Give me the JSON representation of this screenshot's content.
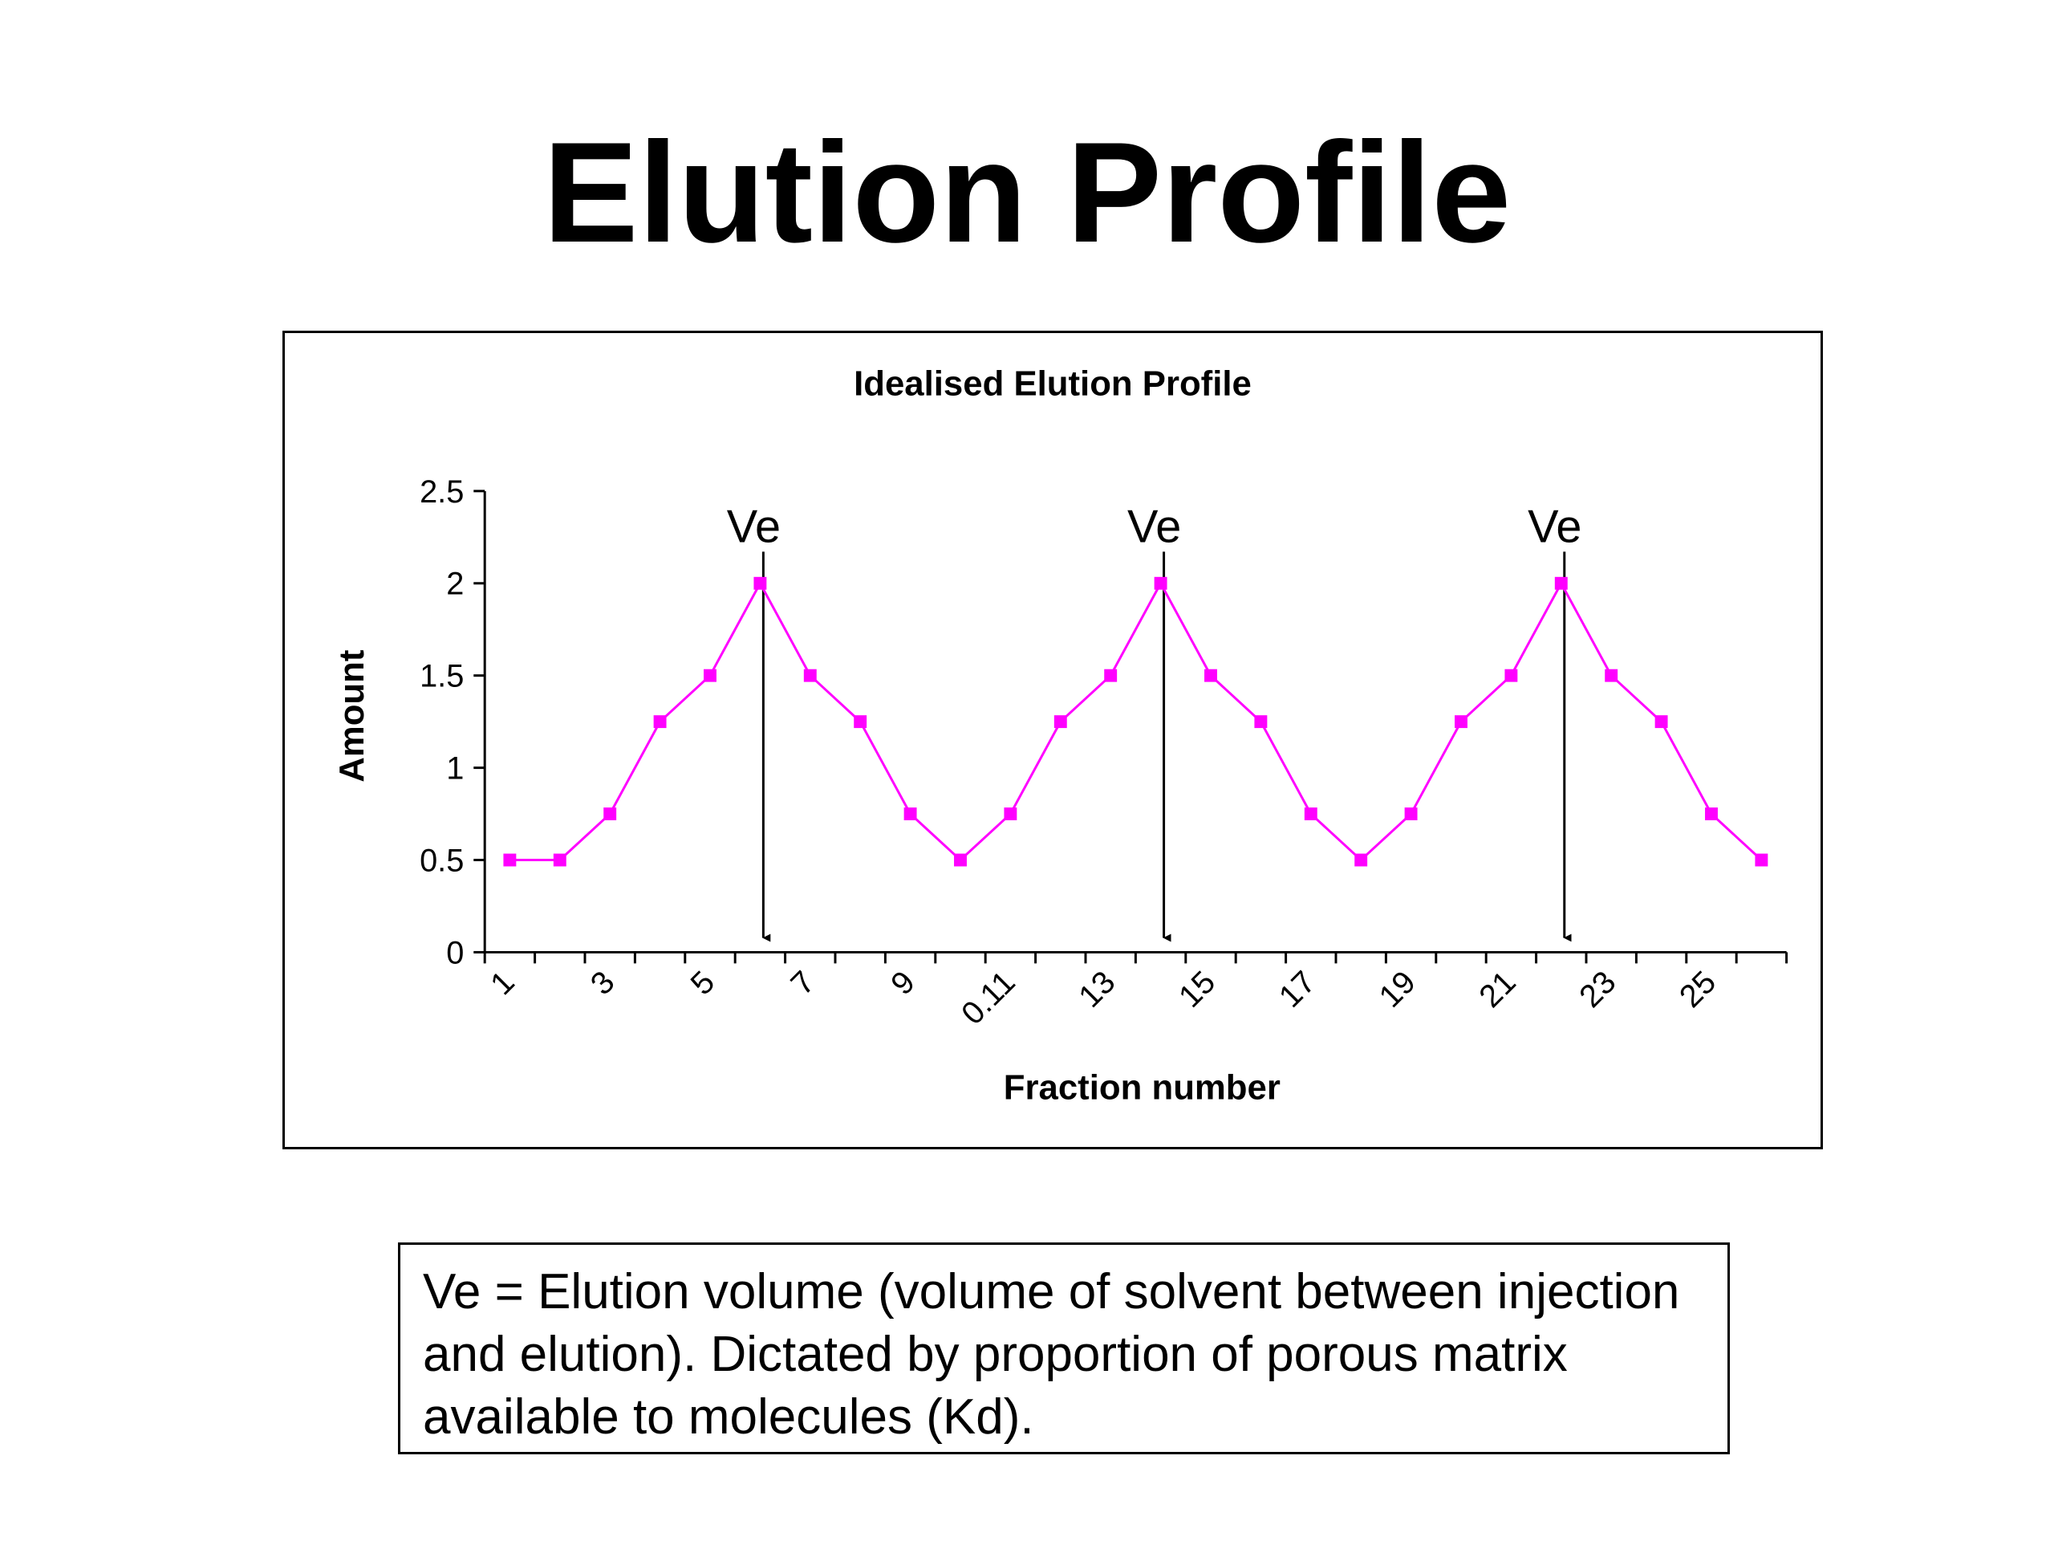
{
  "slide_title": "Elution Profile",
  "legend_text": "Ve = Elution volume (volume of solvent between injection and elution). Dictated by proportion of porous matrix available to molecules (Kd).",
  "chart_data": {
    "type": "line",
    "title": "Idealised Elution Profile",
    "xlabel": "Fraction number",
    "ylabel": "Amount",
    "ylim": [
      0,
      2.5
    ],
    "yticks": [
      "0",
      "0.5",
      "1",
      "1.5",
      "2",
      "2.5"
    ],
    "x": [
      "1",
      "2",
      "3",
      "4",
      "5",
      "6",
      "7",
      "8",
      "9",
      "10",
      "0.11",
      "12",
      "13",
      "14",
      "15",
      "16",
      "17",
      "18",
      "19",
      "20",
      "21",
      "22",
      "23",
      "24",
      "25",
      "26"
    ],
    "xtick_labels": [
      "1",
      "3",
      "5",
      "7",
      "9",
      "0.11",
      "13",
      "15",
      "17",
      "19",
      "21",
      "23",
      "25"
    ],
    "series": [
      {
        "values": [
          0.5,
          0.5,
          0.75,
          1.25,
          1.5,
          2,
          1.5,
          1.25,
          0.75,
          0.5,
          0.75,
          1.25,
          1.5,
          2,
          1.5,
          1.25,
          0.75,
          0.5,
          0.75,
          1.25,
          1.5,
          2,
          1.5,
          1.25,
          0.75,
          0.5
        ],
        "color": "#ff00ff",
        "marker": "square"
      }
    ],
    "annotations": [
      {
        "text": "Ve",
        "x_index": 5
      },
      {
        "text": "Ve",
        "x_index": 13
      },
      {
        "text": "Ve",
        "x_index": 21
      }
    ],
    "grid": false,
    "legend": "none"
  }
}
